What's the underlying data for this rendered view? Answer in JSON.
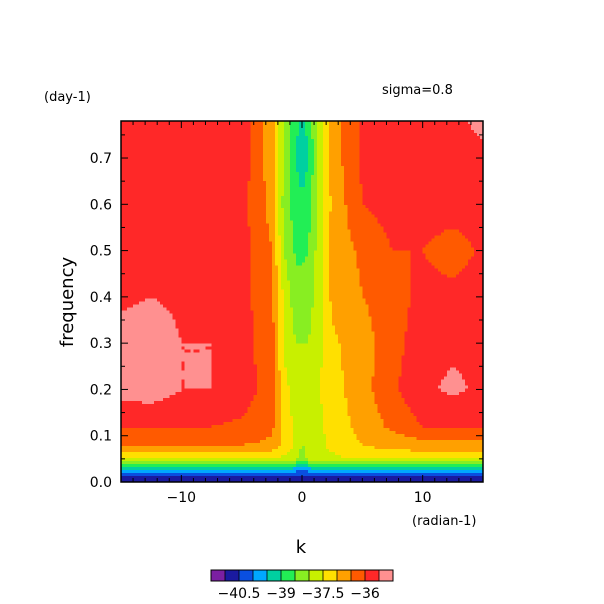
{
  "chart_data": {
    "type": "heatmap",
    "title": "",
    "annotations": {
      "top_left": "(day-1)",
      "top_right": "sigma=0.8"
    },
    "xlabel": "k",
    "xunit": "(radian-1)",
    "ylabel": "frequency",
    "xlim": [
      -15,
      15
    ],
    "ylim": [
      0,
      0.78
    ],
    "x_ticks": [
      -10,
      0,
      10
    ],
    "x_tick_labels": [
      "−10",
      "0",
      "10"
    ],
    "y_ticks": [
      0.0,
      0.1,
      0.2,
      0.3,
      0.4,
      0.5,
      0.6,
      0.7
    ],
    "y_tick_labels": [
      "0.0",
      "0.1",
      "0.2",
      "0.3",
      "0.4",
      "0.5",
      "0.6",
      "0.7"
    ],
    "colorbar": {
      "levels": [
        -41.0,
        -40.5,
        -40.0,
        -39.5,
        -39.0,
        -38.5,
        -38.0,
        -37.5,
        -37.0,
        -36.5,
        -36.0,
        -35.5,
        -35.0
      ],
      "colors": [
        "#7b1fa2",
        "#1a1aa0",
        "#0a4fe0",
        "#00a8ff",
        "#00d0a0",
        "#22ee55",
        "#88ee22",
        "#c8f000",
        "#ffe000",
        "#ffa000",
        "#ff5a00",
        "#ff2828",
        "#ff9090"
      ],
      "tick_values": [
        -40.5,
        -39,
        -37.5,
        -36
      ],
      "tick_labels": [
        "−40.5",
        "−39",
        "−37.5",
        "−36"
      ]
    },
    "grid": {
      "x": [
        -15,
        -12.5,
        -10,
        -7.5,
        -5,
        -2.5,
        -1.5,
        -0.5,
        0,
        0.5,
        1.5,
        2.5,
        5,
        7.5,
        10,
        12.5,
        15
      ],
      "y": [
        0.78,
        0.7,
        0.6,
        0.5,
        0.4,
        0.3,
        0.2,
        0.12,
        0.08,
        0.05,
        0.03,
        0.01
      ],
      "z": [
        [
          -35.6,
          -35.6,
          -35.6,
          -35.7,
          -35.7,
          -36.8,
          -38.0,
          -38.9,
          -39.1,
          -38.9,
          -37.7,
          -36.8,
          -35.9,
          -35.7,
          -35.6,
          -35.6,
          -35.4
        ],
        [
          -35.6,
          -35.6,
          -35.6,
          -35.7,
          -35.7,
          -36.8,
          -38.1,
          -39.0,
          -39.3,
          -39.0,
          -37.8,
          -36.8,
          -35.9,
          -35.7,
          -35.7,
          -35.6,
          -35.6
        ],
        [
          -35.6,
          -35.7,
          -35.8,
          -35.7,
          -35.8,
          -36.7,
          -38.2,
          -38.8,
          -38.9,
          -38.8,
          -37.8,
          -36.9,
          -36.0,
          -35.8,
          -35.7,
          -35.7,
          -35.6
        ],
        [
          -35.6,
          -35.6,
          -35.7,
          -35.6,
          -35.8,
          -36.5,
          -38.0,
          -38.6,
          -38.6,
          -38.5,
          -37.7,
          -36.8,
          -36.4,
          -36.0,
          -36.0,
          -36.3,
          -35.9
        ],
        [
          -35.6,
          -35.5,
          -35.6,
          -35.5,
          -35.8,
          -36.4,
          -37.6,
          -38.3,
          -38.3,
          -38.3,
          -37.6,
          -36.9,
          -36.5,
          -36.3,
          -35.8,
          -35.8,
          -35.6
        ],
        [
          -35.3,
          -35.2,
          -35.5,
          -35.5,
          -35.8,
          -36.3,
          -37.6,
          -38.0,
          -38.0,
          -38.0,
          -37.6,
          -37.1,
          -36.7,
          -36.2,
          -35.7,
          -35.6,
          -35.6
        ],
        [
          -35.3,
          -35.2,
          -35.5,
          -35.5,
          -35.7,
          -36.3,
          -37.3,
          -37.8,
          -37.9,
          -37.9,
          -37.5,
          -37.2,
          -36.7,
          -36.1,
          -35.6,
          -35.4,
          -35.6
        ],
        [
          -36.0,
          -36.0,
          -36.0,
          -36.0,
          -36.1,
          -36.4,
          -37.2,
          -37.6,
          -38.0,
          -37.9,
          -37.6,
          -37.3,
          -36.8,
          -36.4,
          -36.0,
          -36.0,
          -36.0
        ],
        [
          -36.5,
          -36.5,
          -36.5,
          -36.5,
          -36.5,
          -36.6,
          -37.2,
          -37.6,
          -38.0,
          -37.9,
          -37.6,
          -37.4,
          -37.0,
          -36.8,
          -36.7,
          -36.7,
          -36.7
        ],
        [
          -37.4,
          -37.4,
          -37.4,
          -37.4,
          -37.4,
          -37.5,
          -37.6,
          -37.8,
          -38.3,
          -37.8,
          -37.6,
          -37.6,
          -37.4,
          -37.4,
          -37.4,
          -37.4,
          -37.4
        ],
        [
          -39.2,
          -39.2,
          -39.2,
          -39.2,
          -39.2,
          -39.2,
          -39.3,
          -39.5,
          -39.7,
          -39.5,
          -39.3,
          -39.2,
          -39.2,
          -39.2,
          -39.2,
          -39.2,
          -39.2
        ],
        [
          -40.7,
          -40.7,
          -40.7,
          -40.7,
          -40.7,
          -40.7,
          -40.7,
          -40.8,
          -40.9,
          -40.8,
          -40.7,
          -40.7,
          -40.7,
          -40.7,
          -40.7,
          -40.7,
          -40.7
        ]
      ]
    }
  }
}
